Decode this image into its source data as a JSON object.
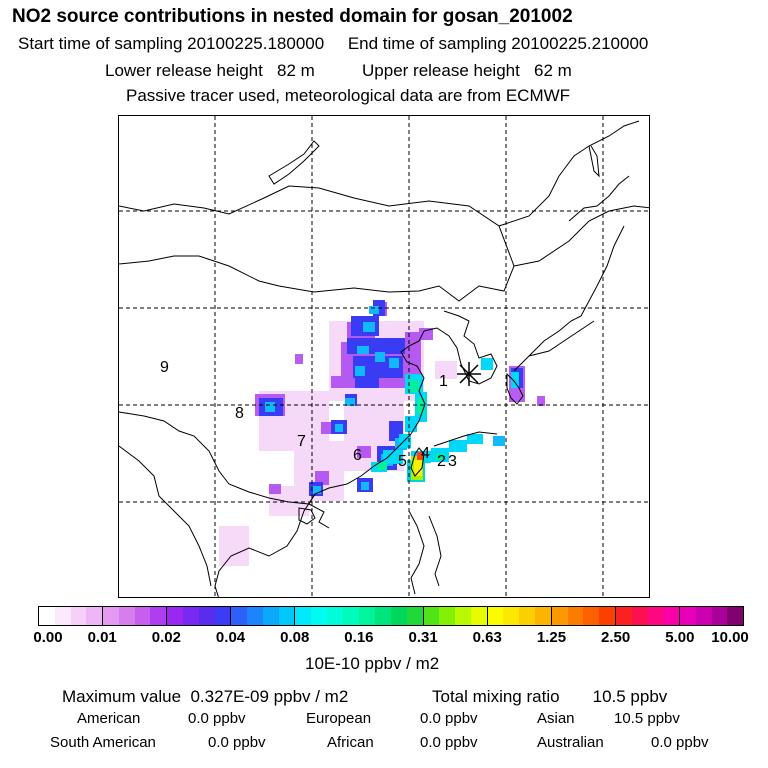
{
  "header": {
    "title": "NO2 source contributions in nested domain for gosan_201002",
    "sampling_line": "Start time of sampling 20100225.180000     End time of sampling 20100225.210000",
    "release_line": "Lower release height   82 m          Upper release height   62 m",
    "info_line": "Passive tracer used, meteorological data are from ECMWF"
  },
  "map": {
    "receptor_marker": "asterisk-receptor-symbol",
    "region_labels": [
      "1",
      "2",
      "3",
      "4",
      "5",
      "6",
      "7",
      "8",
      "9"
    ]
  },
  "colorbar": {
    "tick_labels": [
      "0.00",
      "0.01",
      "0.02",
      "0.04",
      "0.08",
      "0.16",
      "0.31",
      "0.63",
      "1.25",
      "2.50",
      "5.00",
      "10.00"
    ],
    "segments": [
      [
        "#ffffff",
        "#fce8fc",
        "#f6d0f8",
        "#eeb6f4"
      ],
      [
        "#e49af0",
        "#d67eee",
        "#c65eee",
        "#b03ef0"
      ],
      [
        "#9a28f0",
        "#7a28f0",
        "#5a2cf0",
        "#3c3cf4"
      ],
      [
        "#2c60f8",
        "#1c84fc",
        "#0ca8fc",
        "#00c8fc"
      ],
      [
        "#00e8fc",
        "#00fcf0",
        "#00fcd8",
        "#00fcbc"
      ],
      [
        "#00f49c",
        "#00e47c",
        "#00d85c",
        "#20d838"
      ],
      [
        "#50e418",
        "#84f008",
        "#b8f800",
        "#e8fc00"
      ],
      [
        "#fcfc00",
        "#fce800",
        "#fcd000",
        "#fcb400"
      ],
      [
        "#fc9800",
        "#fc7c00",
        "#fc6000",
        "#fc4000"
      ],
      [
        "#fc2020",
        "#fc1050",
        "#fc0880",
        "#fc00a8"
      ],
      [
        "#e800b8",
        "#cc00b0",
        "#a80098",
        "#800070"
      ]
    ],
    "unit": "10E-10 ppbv / m2"
  },
  "summary": {
    "max_line": "Maximum value  0.327E-09 ppbv / m2",
    "total_line": "Total mixing ratio       10.5 ppbv",
    "row1": [
      {
        "label": "American",
        "value": "0.0 ppbv"
      },
      {
        "label": "European",
        "value": "0.0 ppbv"
      },
      {
        "label": "Asian",
        "value": "10.5 ppbv"
      }
    ],
    "row2": [
      {
        "label": "South American",
        "value": "0.0 ppbv"
      },
      {
        "label": "African",
        "value": "0.0 ppbv"
      },
      {
        "label": "Australian",
        "value": "0.0 ppbv"
      }
    ]
  }
}
